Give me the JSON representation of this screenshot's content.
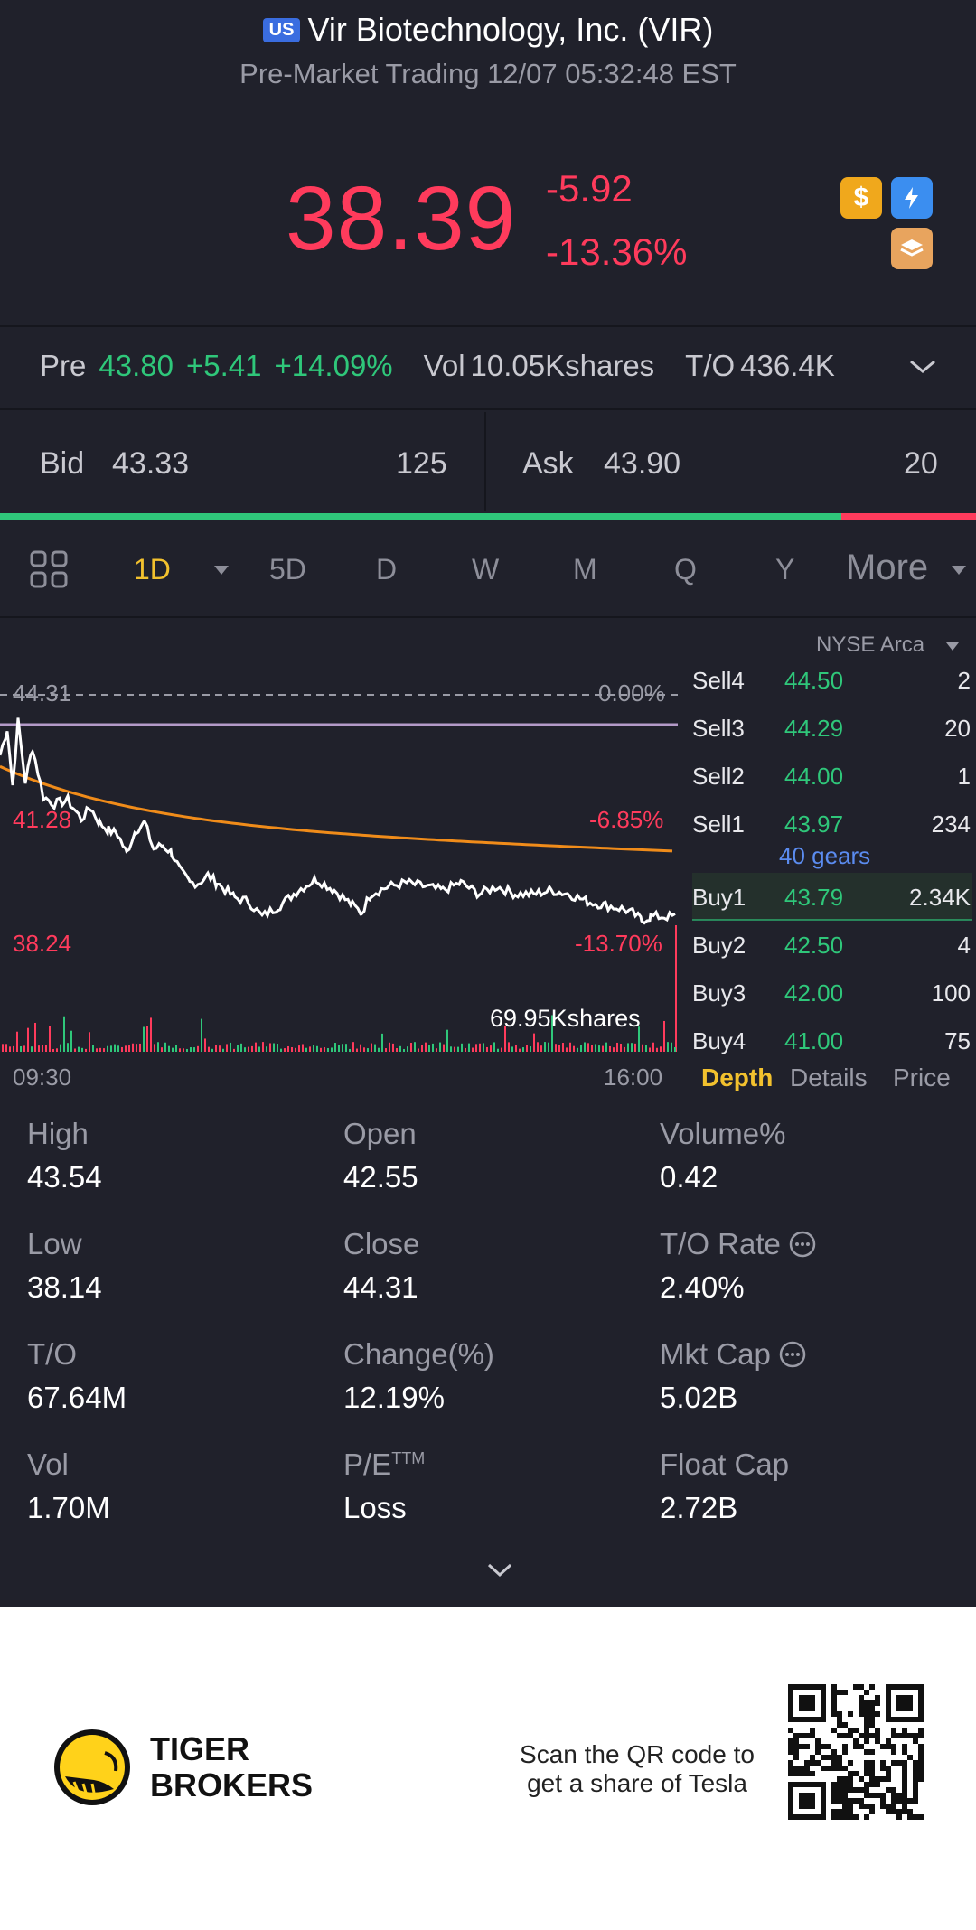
{
  "header": {
    "market_badge": "US",
    "title": "Vir Biotechnology, Inc. (VIR)",
    "subtitle": "Pre-Market Trading 12/07 05:32:48 EST"
  },
  "quote": {
    "price": "38.39",
    "change": "-5.92",
    "change_pct": "-13.36%"
  },
  "pre_market": {
    "label": "Pre",
    "price": "43.80",
    "change": "+5.41",
    "change_pct": "+14.09%",
    "vol_label": "Vol",
    "vol_value": "10.05Kshares",
    "to_label": "T/O",
    "to_value": "436.4K"
  },
  "bid_ask": {
    "bid_label": "Bid",
    "bid_price": "43.33",
    "bid_qty": "125",
    "ask_label": "Ask",
    "ask_price": "43.90",
    "ask_qty": "20",
    "bid_ratio": 0.862
  },
  "timeframes": {
    "tabs": [
      "1D",
      "5D",
      "D",
      "W",
      "M",
      "Q",
      "Y"
    ],
    "active": "1D",
    "more_label": "More"
  },
  "chart": {
    "prev_close_label": "44.31",
    "prev_close_pct": "0.00%",
    "mid_price_label": "41.28",
    "mid_pct": "-6.85%",
    "low_price_label": "38.24",
    "low_pct": "-13.70%",
    "volume_label": "69.95Kshares",
    "start_time": "09:30",
    "end_time": "16:00",
    "exchange": "NYSE Arca"
  },
  "order_book": {
    "sells": [
      {
        "label": "Sell4",
        "price": "44.50",
        "qty": "2"
      },
      {
        "label": "Sell3",
        "price": "44.29",
        "qty": "20"
      },
      {
        "label": "Sell2",
        "price": "44.00",
        "qty": "1"
      },
      {
        "label": "Sell1",
        "price": "43.97",
        "qty": "234"
      }
    ],
    "gears": "40 gears",
    "buys": [
      {
        "label": "Buy1",
        "price": "43.79",
        "qty": "2.34K"
      },
      {
        "label": "Buy2",
        "price": "42.50",
        "qty": "4"
      },
      {
        "label": "Buy3",
        "price": "42.00",
        "qty": "100"
      },
      {
        "label": "Buy4",
        "price": "41.00",
        "qty": "75"
      }
    ],
    "tabs": [
      "Depth",
      "Details",
      "Price"
    ]
  },
  "stats": [
    {
      "label": "High",
      "value": "43.54"
    },
    {
      "label": "Open",
      "value": "42.55"
    },
    {
      "label": "Volume%",
      "value": "0.42"
    },
    {
      "label": "Low",
      "value": "38.14"
    },
    {
      "label": "Close",
      "value": "44.31"
    },
    {
      "label": "T/O Rate",
      "value": "2.40%"
    },
    {
      "label": "T/O",
      "value": "67.64M"
    },
    {
      "label": "Change(%)",
      "value": "12.19%"
    },
    {
      "label": "Mkt Cap",
      "value": "5.02B"
    },
    {
      "label": "Vol",
      "value": "1.70M"
    },
    {
      "label": "P/E",
      "label_sup": "TTM",
      "value": "Loss"
    },
    {
      "label": "Float Cap",
      "value": "2.72B"
    }
  ],
  "footer": {
    "brand_line1": "TIGER",
    "brand_line2": "BROKERS",
    "scan_line1": "Scan the QR code to",
    "scan_line2": "get a share of Tesla"
  },
  "colors": {
    "up": "#2fc77a",
    "down": "#ff3b5c",
    "accent": "#f2c12e",
    "background": "#20212b"
  }
}
